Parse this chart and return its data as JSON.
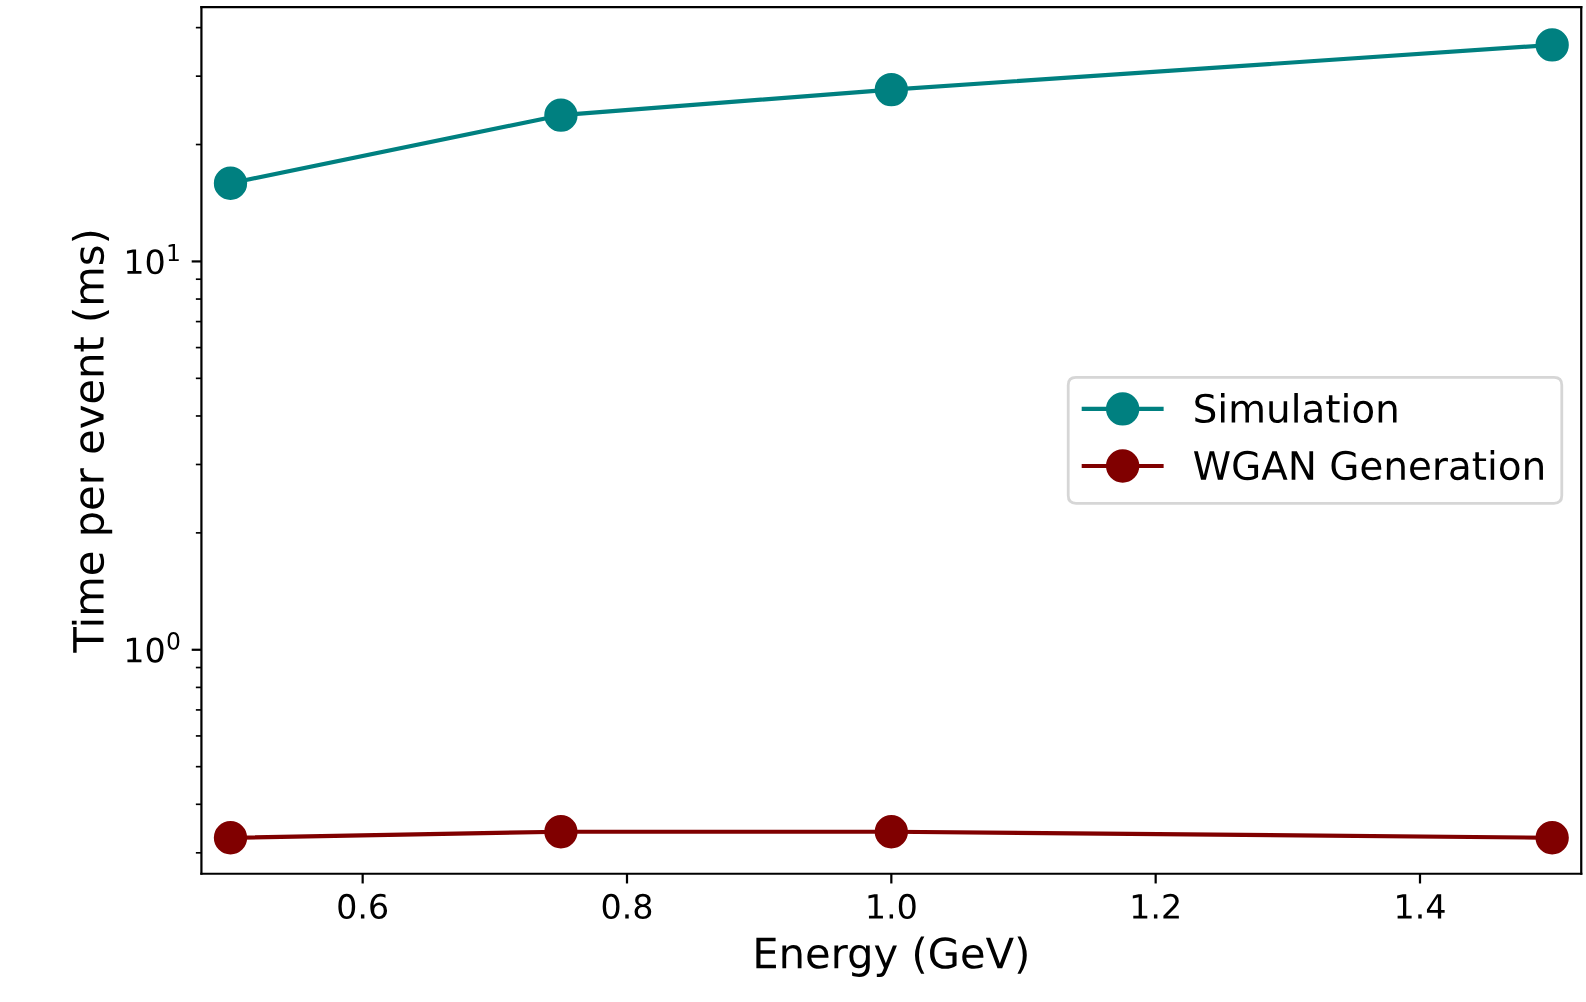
{
  "chart_data": {
    "type": "line",
    "xlabel": "Energy (GeV)",
    "ylabel": "Time per event (ms)",
    "log": "y",
    "x": [
      0.5,
      0.75,
      1.0,
      1.5
    ],
    "series": [
      {
        "name": "Simulation",
        "color": "#008080",
        "values": [
          15.9,
          23.8,
          27.7,
          36.1
        ]
      },
      {
        "name": "WGAN Generation",
        "color": "#800000",
        "values": [
          0.328,
          0.34,
          0.34,
          0.328
        ]
      }
    ],
    "xlim": [
      0.478,
      1.522
    ],
    "xticks": [
      0.6,
      0.8,
      {
        "value": 1.0,
        "label": "1.0"
      },
      1.2,
      1.4
    ],
    "ylim": [
      0.265,
      45.2
    ],
    "yticks": [
      {
        "value": 1,
        "label": "10$^{0}$"
      },
      {
        "value": 10,
        "label": "10$^{1}$"
      }
    ],
    "grid": false,
    "legend": "right",
    "marker": "circle",
    "line_style": "solid"
  }
}
